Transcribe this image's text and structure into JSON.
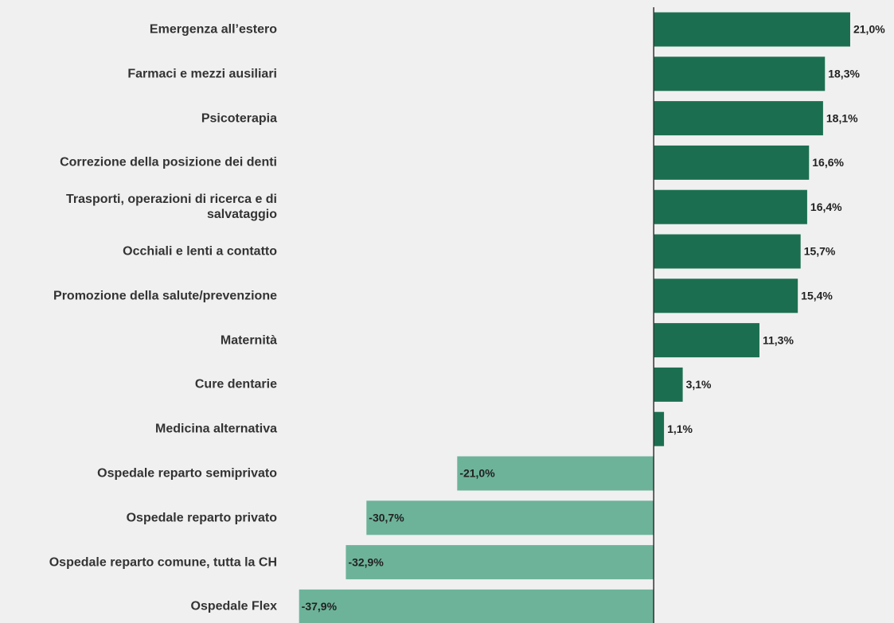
{
  "chart_data": {
    "type": "bar",
    "orientation": "horizontal",
    "categories": [
      "Emergenza all’estero",
      "Farmaci e mezzi ausiliari",
      "Psicoterapia",
      "Correzione della posizione dei denti",
      "Trasporti, operazioni di ricerca e di salvataggio",
      "Occhiali e lenti a contatto",
      "Promozione della salute/prevenzione",
      "Maternità",
      "Cure dentarie",
      "Medicina alternativa",
      "Ospedale reparto semiprivato",
      "Ospedale reparto privato",
      "Ospedale reparto comune, tutta la CH",
      "Ospedale Flex"
    ],
    "values": [
      21.0,
      18.3,
      18.1,
      16.6,
      16.4,
      15.7,
      15.4,
      11.3,
      3.1,
      1.1,
      -21.0,
      -30.7,
      -32.9,
      -37.9
    ],
    "value_labels": [
      "21,0%",
      "18,3%",
      "18,1%",
      "16,6%",
      "16,4%",
      "15,7%",
      "15,4%",
      "11,3%",
      "3,1%",
      "1,1%",
      "-21,0%",
      "-30,7%",
      "-32,9%",
      "-37,9%"
    ],
    "positive_color": "#1b6f50",
    "negative_color": "#6db39a",
    "xlim": [
      -40,
      25
    ]
  }
}
